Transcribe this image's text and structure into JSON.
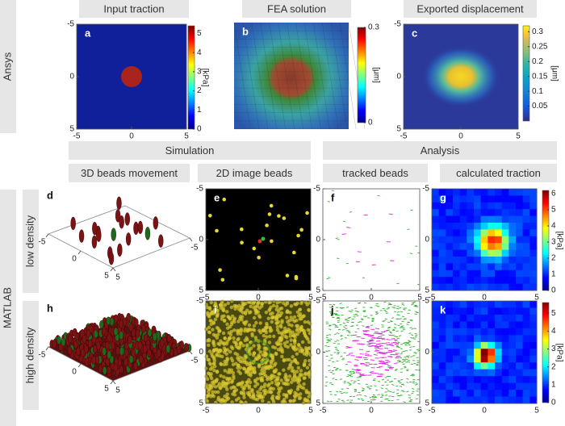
{
  "sections": [
    {
      "label": "Ansys"
    },
    {
      "label": "MATLAB",
      "rows": [
        "low density",
        "high density"
      ]
    }
  ],
  "headers": [
    "Input traction",
    "FEA solution",
    "Exported displacement"
  ],
  "groups": [
    "Simulation",
    "Analysis"
  ],
  "subheaders": [
    "3D beads movement",
    "2D image beads",
    "tracked beads",
    "calculated traction"
  ],
  "panels": [
    {
      "letter": "a",
      "xlim": [
        -5,
        5
      ],
      "xticks": [
        -5,
        0,
        5
      ],
      "ylim": [
        -5,
        5
      ],
      "yticks": [
        -5,
        0,
        5
      ],
      "colorbar": {
        "lim": [
          0,
          5.4
        ],
        "ticks": [
          0,
          1,
          2,
          3,
          4,
          5
        ],
        "label": "[kPa]"
      }
    },
    {
      "letter": "b",
      "colorbar": {
        "lim": [
          0,
          0.3
        ],
        "ticks": [
          0,
          0.3
        ],
        "label": "[μm]"
      }
    },
    {
      "letter": "c",
      "xlim": [
        -5,
        5
      ],
      "xticks": [
        -5,
        0,
        5
      ],
      "ylim": [
        -5,
        5
      ],
      "yticks": [
        -5,
        0,
        5
      ],
      "colorbar": {
        "lim": [
          0,
          0.32
        ],
        "ticks": [
          0.05,
          0.1,
          0.15,
          0.2,
          0.25,
          0.3
        ],
        "label": "[μm]"
      }
    },
    {
      "letter": "d",
      "xlim": [
        -5,
        5
      ],
      "xticks": [
        -5,
        0,
        5
      ],
      "ylim": [
        -5,
        5
      ],
      "yticks": [
        5,
        -5
      ]
    },
    {
      "letter": "e",
      "xlim": [
        -5,
        5
      ],
      "xticks": [
        -5,
        0,
        5
      ],
      "ylim": [
        -5,
        5
      ],
      "yticks": [
        -5,
        0,
        5
      ]
    },
    {
      "letter": "f",
      "xlim": [
        -5,
        5
      ],
      "xticks": [
        -5,
        0,
        5
      ],
      "ylim": [
        -5,
        5
      ],
      "yticks": [
        -5,
        0,
        5
      ]
    },
    {
      "letter": "g",
      "xlim": [
        -5,
        5
      ],
      "xticks": [
        -5,
        0,
        5
      ],
      "ylim": [
        -5,
        5
      ],
      "yticks": [
        -5,
        0,
        5
      ],
      "colorbar": {
        "lim": [
          0,
          6.2
        ],
        "ticks": [
          0,
          1,
          2,
          3,
          4,
          5,
          6
        ],
        "label": "[kPa]"
      }
    },
    {
      "letter": "h",
      "xlim": [
        -5,
        5
      ],
      "xticks": [
        -5,
        0,
        5
      ],
      "ylim": [
        -5,
        5
      ],
      "yticks": [
        5,
        -5
      ]
    },
    {
      "letter": "i",
      "xlim": [
        -5,
        5
      ],
      "xticks": [
        -5,
        0,
        5
      ],
      "ylim": [
        -5,
        5
      ],
      "yticks": [
        -5,
        0,
        5
      ]
    },
    {
      "letter": "j",
      "xlim": [
        -5,
        5
      ],
      "xticks": [
        -5,
        0,
        5
      ],
      "ylim": [
        -5,
        5
      ],
      "yticks": [
        -5,
        0,
        5
      ]
    },
    {
      "letter": "k",
      "xlim": [
        -5,
        5
      ],
      "xticks": [
        -5,
        0,
        5
      ],
      "ylim": [
        -5,
        5
      ],
      "yticks": [
        -5,
        0,
        5
      ],
      "colorbar": {
        "lim": [
          0,
          5.6
        ],
        "ticks": [
          0,
          1,
          2,
          3,
          4,
          5
        ],
        "label": "[kPa]"
      }
    }
  ]
}
